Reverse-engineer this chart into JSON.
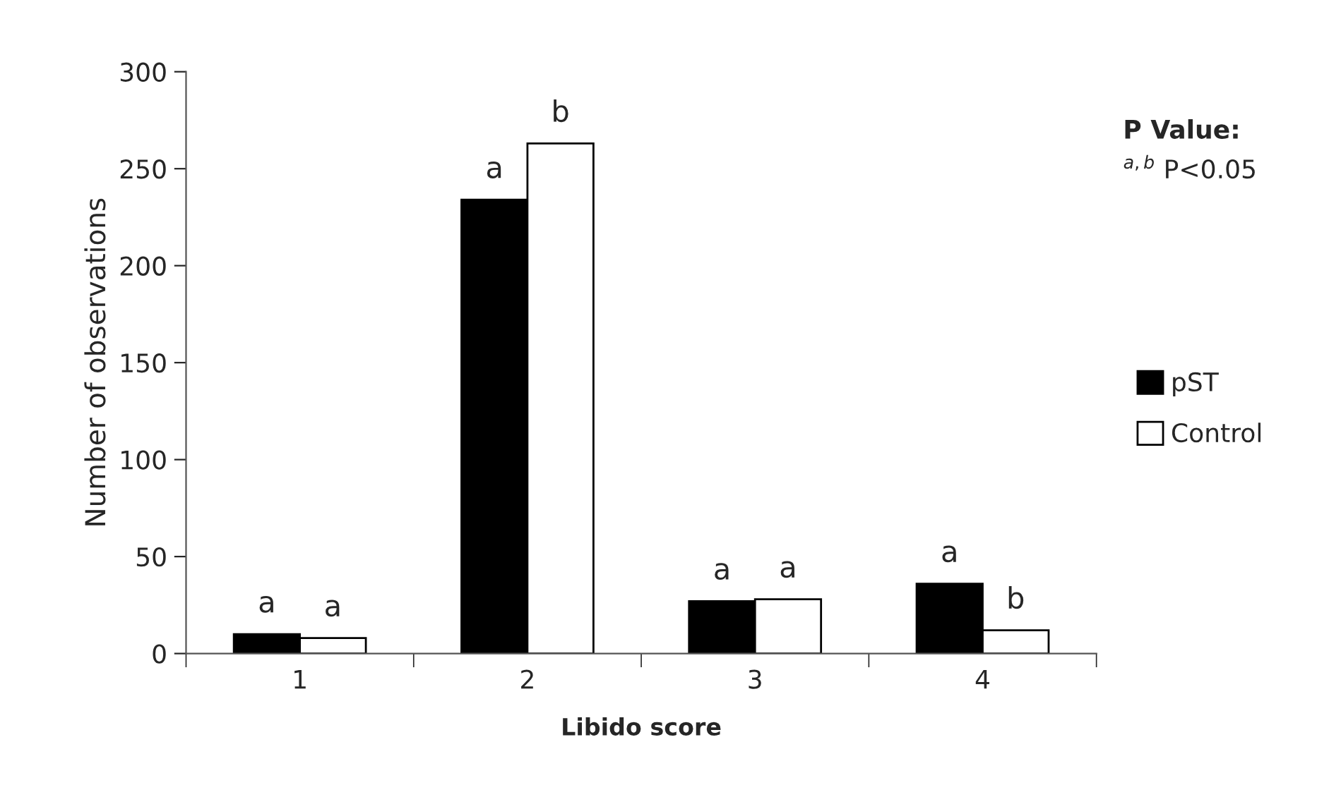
{
  "chart_data": {
    "type": "bar",
    "xlabel": "Libido score",
    "ylabel": "Number of observations",
    "categories": [
      "1",
      "2",
      "3",
      "4"
    ],
    "series": [
      {
        "name": "pST",
        "color": "#000000",
        "values": [
          10,
          234,
          27,
          36
        ]
      },
      {
        "name": "Control",
        "color": "#ffffff",
        "values": [
          8,
          263,
          28,
          12
        ]
      }
    ],
    "ylim": [
      0,
      300
    ],
    "yticks": [
      0,
      50,
      100,
      150,
      200,
      250,
      300
    ],
    "grid": false,
    "legend": "right",
    "annotations": [
      {
        "text": "a",
        "x": "1",
        "y": 10
      },
      {
        "text": "a",
        "x": "1",
        "y": 8
      },
      {
        "text": "a",
        "x": "2",
        "y": 234
      },
      {
        "text": "b",
        "x": "2",
        "y": 263
      },
      {
        "text": "a",
        "x": "3",
        "y": 27
      },
      {
        "text": "a",
        "x": "3",
        "y": 28
      },
      {
        "text": "a",
        "x": "4",
        "y": 36
      },
      {
        "text": "b",
        "x": "4",
        "y": 12
      },
      "P Value:",
      "$^{a,b}$ P<0.05"
    ]
  }
}
